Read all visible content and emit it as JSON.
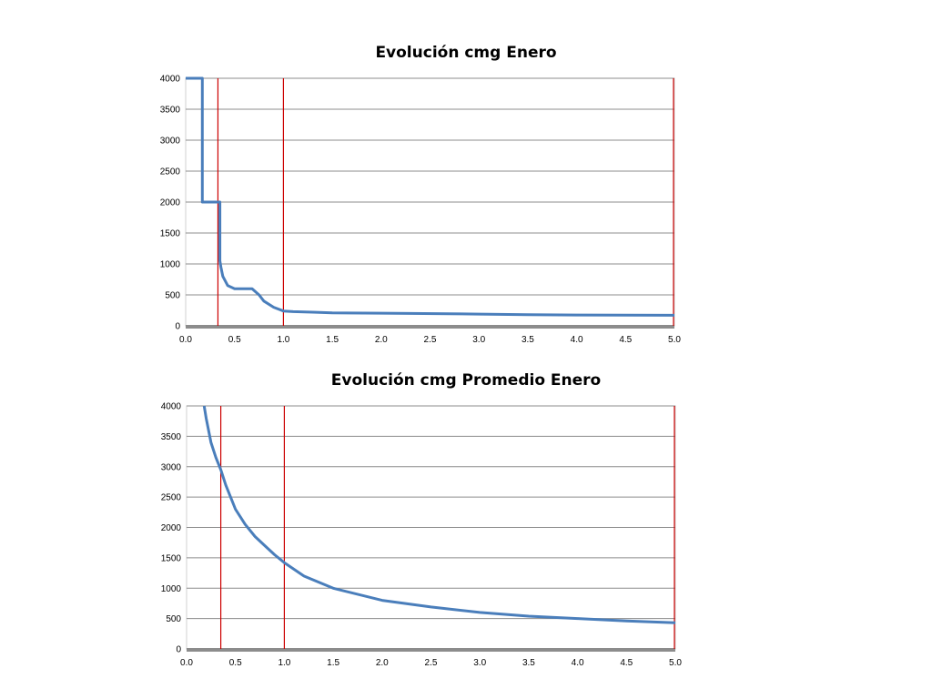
{
  "chart_data": [
    {
      "type": "line",
      "title": "Evolución cmg Enero",
      "xlim": [
        0,
        5
      ],
      "ylim": [
        0,
        4000
      ],
      "x_ticks": [
        "0.0",
        "0.5",
        "1.0",
        "1.5",
        "2.0",
        "2.5",
        "3.0",
        "3.5",
        "4.0",
        "4.5",
        "5.0"
      ],
      "y_ticks": [
        "0",
        "500",
        "1000",
        "1500",
        "2000",
        "2500",
        "3000",
        "3500",
        "4000"
      ],
      "grid": "horizontal",
      "reference_lines_x": [
        0.33,
        1.0,
        5.0
      ],
      "reference_line_color": "#cc0000",
      "series_color": "#4a7ebb",
      "series": [
        {
          "x": [
            0.0,
            0.17,
            0.17,
            0.35,
            0.35,
            0.36,
            0.38,
            0.43,
            0.5,
            0.68,
            0.75,
            0.8,
            0.9,
            1.0,
            1.1,
            1.3,
            1.5,
            2.0,
            2.3,
            2.7,
            3.0,
            3.5,
            4.0,
            4.5,
            5.0
          ],
          "y": [
            4000,
            4000,
            2000,
            2000,
            1050,
            950,
            800,
            650,
            600,
            600,
            500,
            400,
            300,
            240,
            230,
            220,
            210,
            205,
            200,
            195,
            190,
            180,
            175,
            172,
            170
          ]
        }
      ]
    },
    {
      "type": "line",
      "title": "Evolución cmg Promedio Enero",
      "xlim": [
        0,
        5
      ],
      "ylim": [
        0,
        4000
      ],
      "x_ticks": [
        "0.0",
        "0.5",
        "1.0",
        "1.5",
        "2.0",
        "2.5",
        "3.0",
        "3.5",
        "4.0",
        "4.5",
        "5.0"
      ],
      "y_ticks": [
        "0",
        "500",
        "1000",
        "1500",
        "2000",
        "2500",
        "3000",
        "3500",
        "4000"
      ],
      "grid": "horizontal",
      "reference_lines_x": [
        0.35,
        1.0,
        5.0
      ],
      "reference_line_color": "#cc0000",
      "series_color": "#4a7ebb",
      "series": [
        {
          "x": [
            0.18,
            0.2,
            0.25,
            0.3,
            0.35,
            0.4,
            0.5,
            0.6,
            0.7,
            0.8,
            0.9,
            1.0,
            1.2,
            1.5,
            2.0,
            2.5,
            3.0,
            3.5,
            4.0,
            4.5,
            5.0
          ],
          "y": [
            4000,
            3800,
            3400,
            3150,
            2950,
            2700,
            2300,
            2050,
            1850,
            1700,
            1550,
            1420,
            1200,
            1000,
            800,
            690,
            600,
            540,
            500,
            460,
            430
          ]
        }
      ]
    }
  ]
}
